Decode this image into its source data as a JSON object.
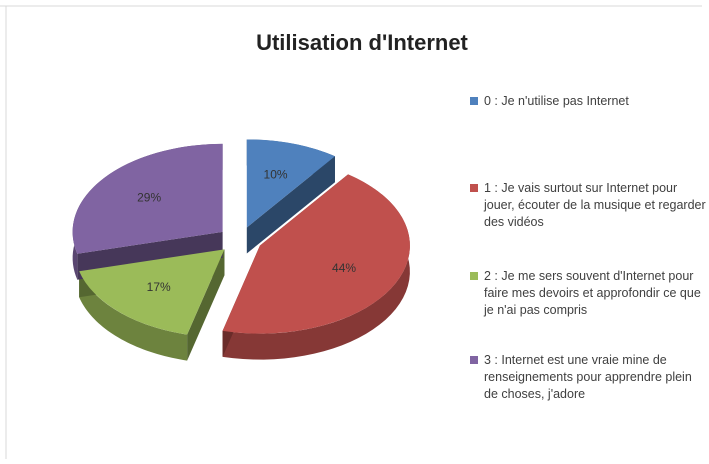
{
  "chart_data": {
    "type": "pie3d",
    "title": "Utilisation d'Internet",
    "categories": [
      "0 : Je n'utilise pas Internet",
      "1 : Je vais surtout sur Internet pour jouer, écouter de la musique et regarder des vidéos",
      "2 : Je me sers souvent d'Internet pour faire mes devoirs et approfondir ce que je n'ai pas compris",
      "3 : Internet est une vraie mine de renseignements pour apprendre plein de choses, j'adore"
    ],
    "values": [
      10,
      44,
      17,
      29
    ],
    "value_labels": [
      "10%",
      "44%",
      "17%",
      "29%"
    ],
    "colors": [
      "#4f81bd",
      "#c0504d",
      "#9bbb59",
      "#8064a2"
    ]
  }
}
